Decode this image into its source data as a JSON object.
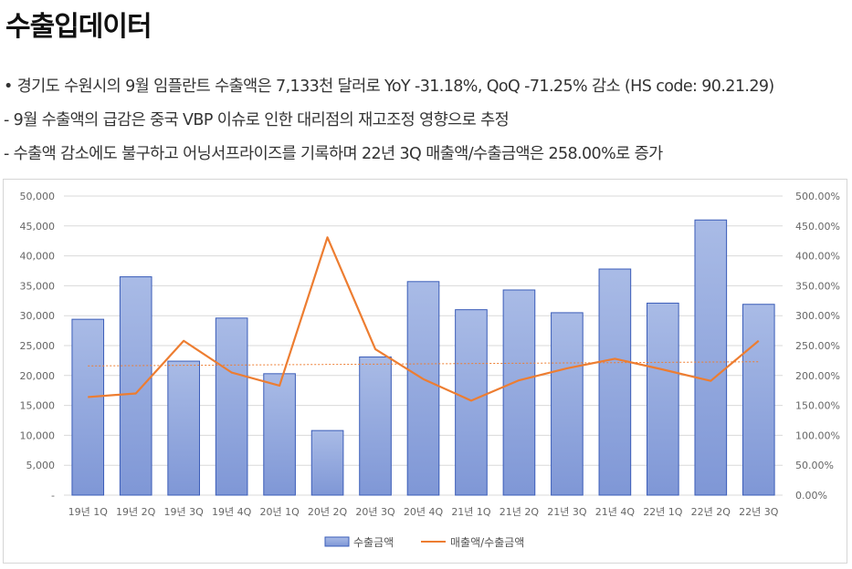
{
  "page": {
    "title": "수출입데이터",
    "bullets": [
      "• 경기도 수원시의 9월 임플란트 수출액은 7,133천 달러로 YoY -31.18%, QoQ -71.25% 감소 (HS code: 90.21.29)",
      " - 9월 수출액의 급감은 중국 VBP 이슈로 인한 대리점의 재고조정 영향으로 추정",
      " - 수출액 감소에도 불구하고 어닝서프라이즈를 기록하며 22년 3Q 매출액/수출금액은 258.00%로 증가"
    ]
  },
  "chart_data": {
    "type": "bar",
    "categories": [
      "19년 1Q",
      "19년 2Q",
      "19년 3Q",
      "19년 4Q",
      "20년 1Q",
      "20년 2Q",
      "20년 3Q",
      "20년 4Q",
      "21년 1Q",
      "21년 2Q",
      "21년 3Q",
      "21년 4Q",
      "22년 1Q",
      "22년 2Q",
      "22년 3Q"
    ],
    "series": [
      {
        "name": "수출금액",
        "type": "bar",
        "axis": "left",
        "color": "#8FA6DA",
        "values": [
          29400,
          36500,
          22400,
          29600,
          20300,
          10800,
          23100,
          35700,
          31000,
          34300,
          30500,
          37800,
          32100,
          46000,
          31900
        ]
      },
      {
        "name": "매출액/수출금액",
        "type": "line",
        "axis": "right",
        "color": "#ED7D31",
        "values": [
          164,
          170,
          258,
          205,
          183,
          431,
          244,
          194,
          158,
          192,
          212,
          228,
          210,
          191,
          258
        ]
      }
    ],
    "trendline": {
      "color": "#ED7D31",
      "start": 216,
      "end": 223
    },
    "y_left": {
      "min": 0,
      "max": 50000,
      "ticks": [
        "-",
        "5,000",
        "10,000",
        "15,000",
        "20,000",
        "25,000",
        "30,000",
        "35,000",
        "40,000",
        "45,000",
        "50,000"
      ]
    },
    "y_right": {
      "min": 0,
      "max": 500,
      "ticks": [
        "0.00%",
        "50.00%",
        "100.00%",
        "150.00%",
        "200.00%",
        "250.00%",
        "300.00%",
        "350.00%",
        "400.00%",
        "450.00%",
        "500.00%"
      ]
    },
    "grid": true,
    "legend_position": "bottom",
    "xlabel": "",
    "ylabel": ""
  }
}
